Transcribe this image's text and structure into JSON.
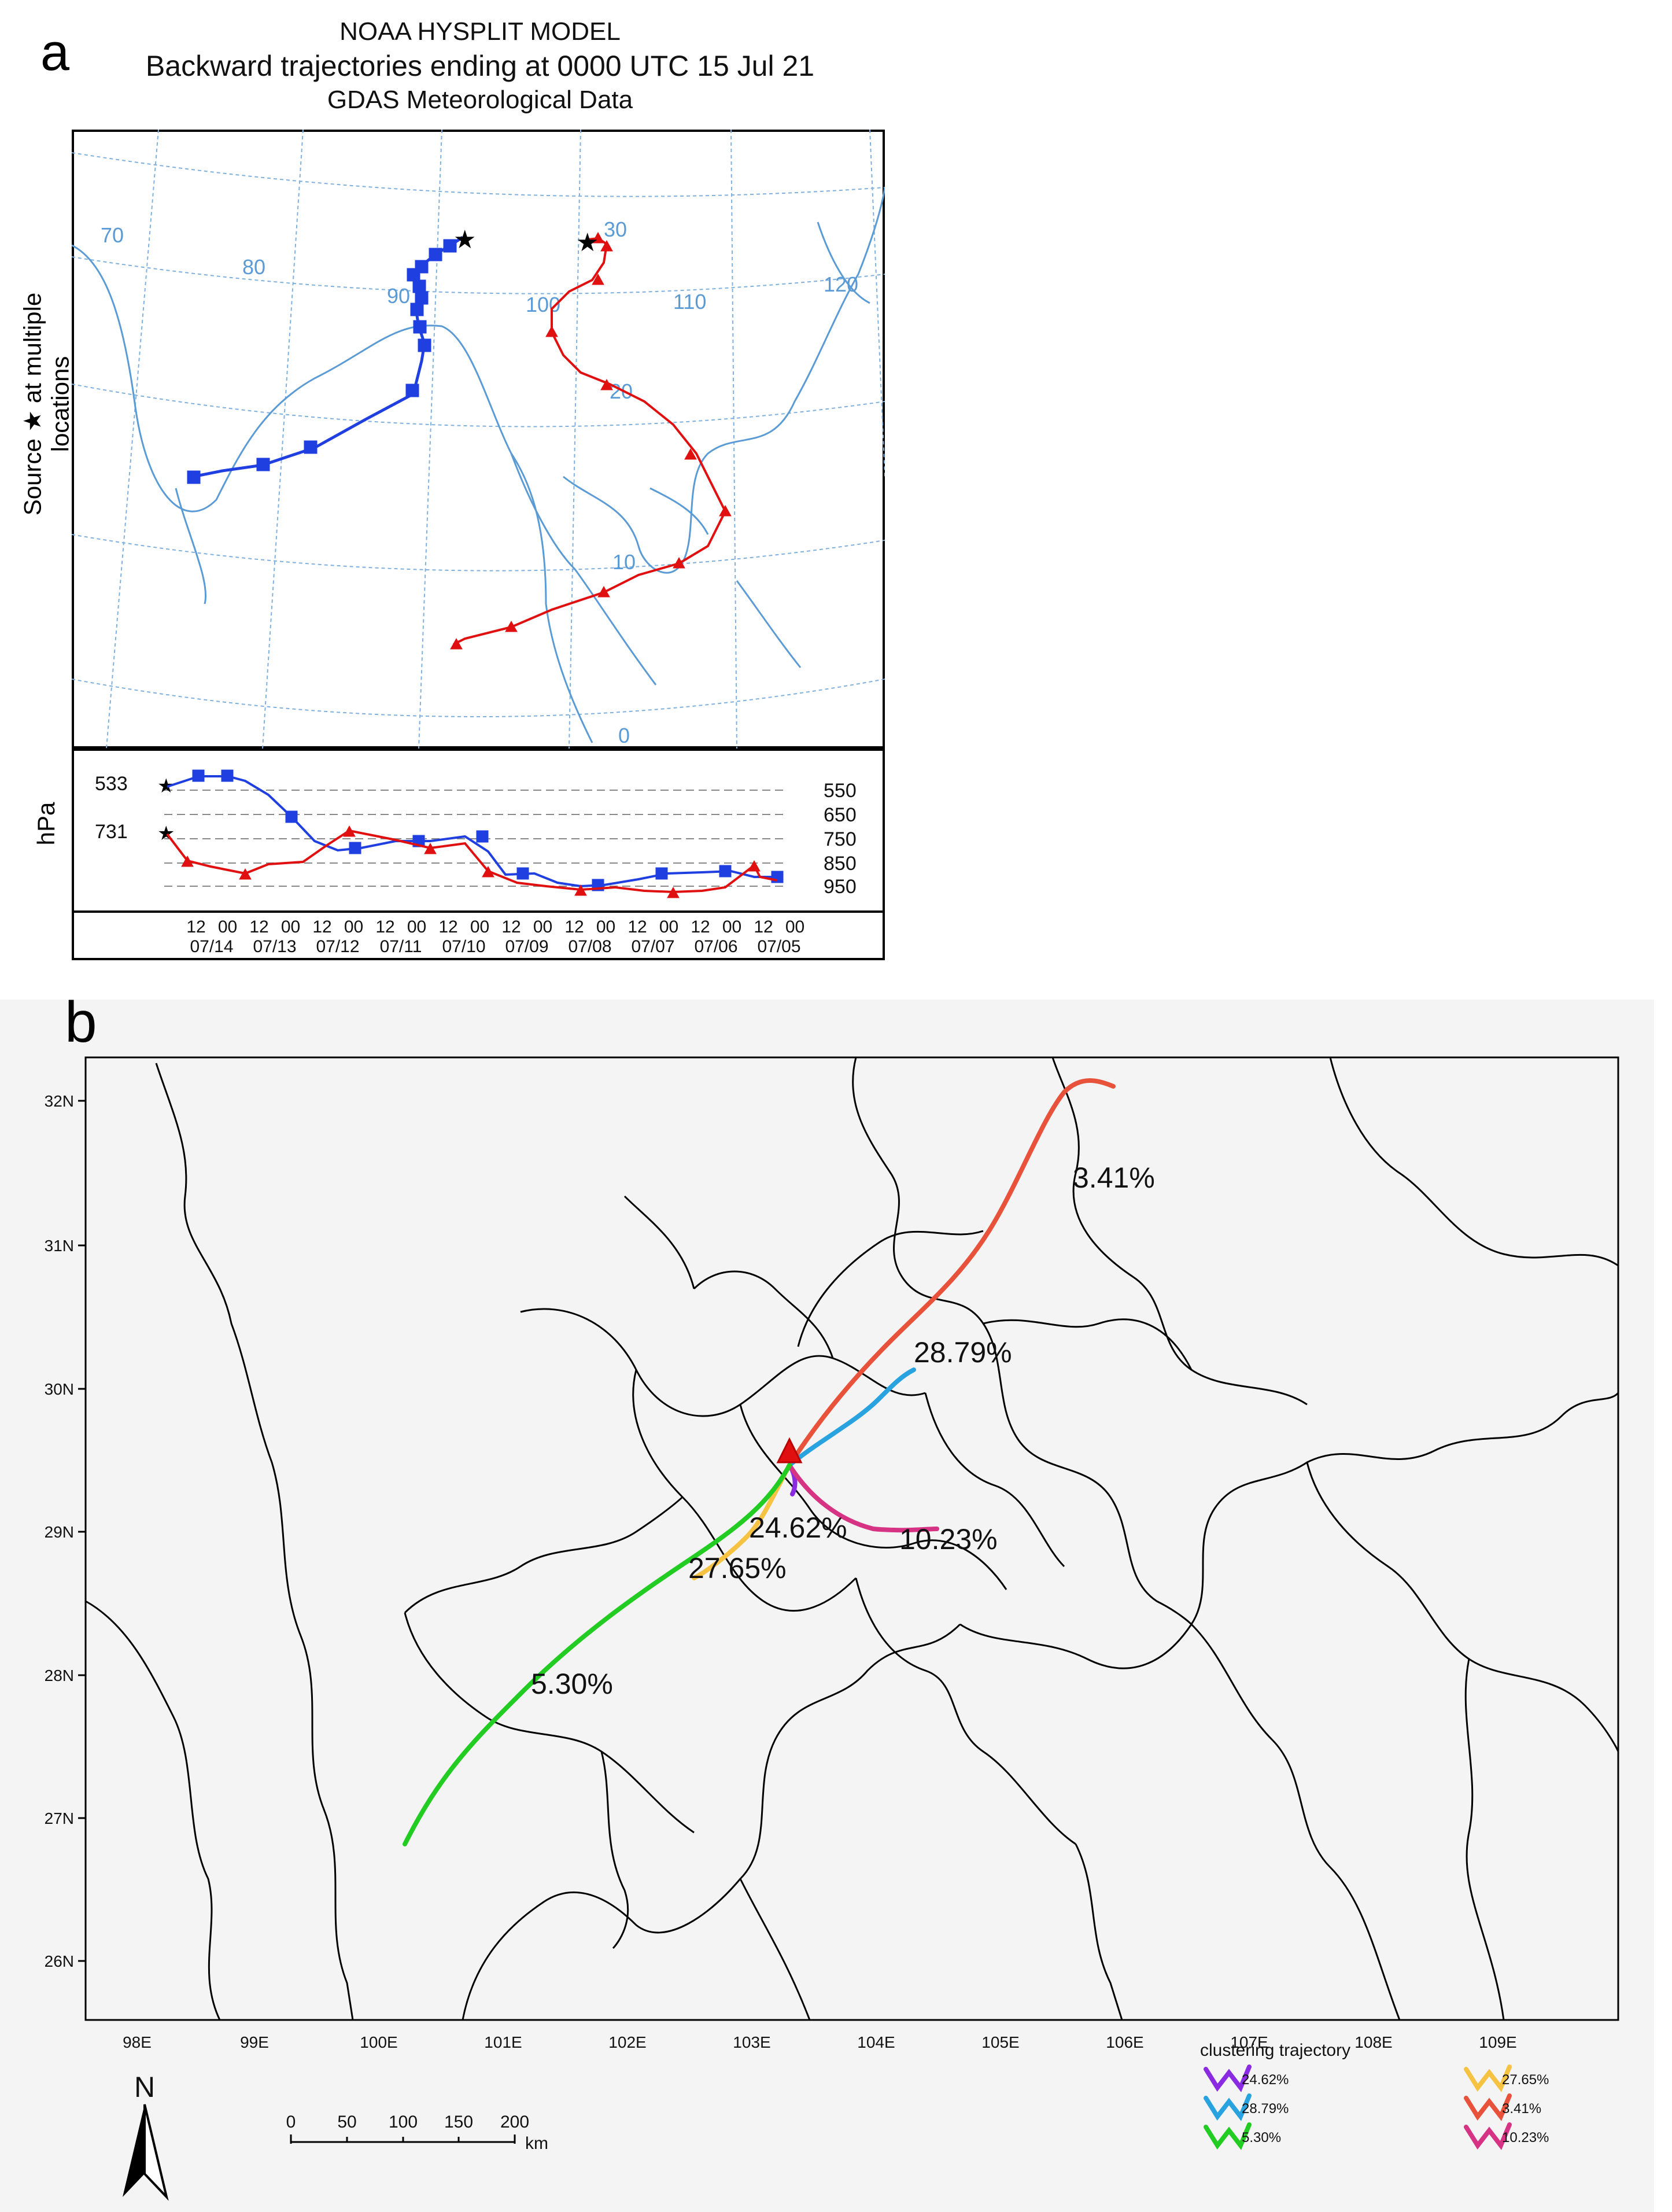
{
  "panel_a": {
    "letter": "a",
    "title1": "NOAA HYSPLIT MODEL",
    "title2": "Backward trajectories ending at 0000 UTC 15 Jul 21",
    "title3": "GDAS Meteorological Data",
    "ylabel_source": "Source ★  at multiple locations",
    "ylabel_hpa": "hPa",
    "map_labels": [
      "70",
      "80",
      "90",
      "100",
      "110",
      "120",
      "30",
      "20",
      "10",
      "0"
    ],
    "start_levels": [
      "533",
      "731"
    ],
    "right_levels": [
      "550",
      "650",
      "750",
      "850",
      "950"
    ],
    "time_ticks_top": [
      "12",
      "00",
      "12",
      "00",
      "12",
      "00",
      "12",
      "00",
      "12",
      "00",
      "12",
      "00",
      "12",
      "00",
      "12",
      "00",
      "12",
      "00",
      "12",
      "00"
    ],
    "date_ticks": [
      "07/14",
      "07/13",
      "07/12",
      "07/11",
      "07/10",
      "07/09",
      "07/08",
      "07/07",
      "07/06",
      "07/05"
    ],
    "colors": {
      "blue": "#1f3fe0",
      "red": "#e01010",
      "coast": "#5b9bd5",
      "grid": "#7fb0de"
    }
  },
  "panel_b": {
    "letter": "b",
    "lat_labels": [
      "32N",
      "31N",
      "30N",
      "29N",
      "28N",
      "27N",
      "26N"
    ],
    "lon_labels": [
      "98E",
      "99E",
      "100E",
      "101E",
      "102E",
      "103E",
      "104E",
      "105E",
      "106E",
      "107E",
      "108E",
      "109E"
    ],
    "cluster_labels": [
      {
        "text": "3.41%",
        "color": "#e8513a"
      },
      {
        "text": "28.79%",
        "color": "#29a3e0"
      },
      {
        "text": "24.62%",
        "color": "#8a2be2"
      },
      {
        "text": "10.23%",
        "color": "#d63384"
      },
      {
        "text": "27.65%",
        "color": "#f5c242"
      },
      {
        "text": "5.30%",
        "color": "#22cc22"
      }
    ],
    "legend_title": "clustering trajectory",
    "legend_items": [
      {
        "label": "24.62%",
        "color": "#8a2be2"
      },
      {
        "label": "27.65%",
        "color": "#f5c242"
      },
      {
        "label": "28.79%",
        "color": "#29a3e0"
      },
      {
        "label": "3.41%",
        "color": "#e8513a"
      },
      {
        "label": "5.30%",
        "color": "#22cc22"
      },
      {
        "label": "10.23%",
        "color": "#d63384"
      }
    ],
    "north_label": "N",
    "scale_ticks": [
      "0",
      "50",
      "100",
      "150",
      "200"
    ],
    "scale_unit": "km"
  }
}
